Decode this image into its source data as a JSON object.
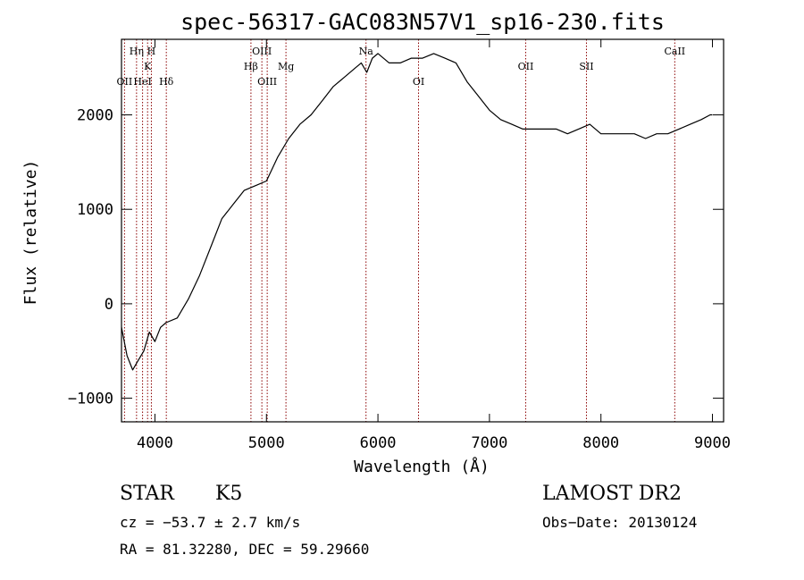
{
  "chart_data": {
    "type": "line",
    "title": "spec-56317-GAC083N57V1_sp16-230.fits",
    "xlabel": "Wavelength (Å)",
    "ylabel": "Flux (relative)",
    "xlim": [
      3700,
      9100
    ],
    "ylim": [
      -1250,
      2800
    ],
    "x_ticks": [
      4000,
      5000,
      6000,
      7000,
      8000,
      9000
    ],
    "y_ticks": [
      -1000,
      0,
      1000,
      2000
    ],
    "grid": false,
    "series": [
      {
        "x": [
          3700,
          3750,
          3800,
          3850,
          3900,
          3950,
          4000,
          4050,
          4100,
          4200,
          4300,
          4400,
          4500,
          4600,
          4700,
          4800,
          4900,
          5000,
          5100,
          5200,
          5300,
          5400,
          5500,
          5600,
          5700,
          5800,
          5850,
          5900,
          5950,
          6000,
          6100,
          6200,
          6300,
          6400,
          6500,
          6600,
          6700,
          6800,
          6900,
          7000,
          7100,
          7200,
          7300,
          7400,
          7500,
          7600,
          7700,
          7800,
          7900,
          8000,
          8100,
          8200,
          8300,
          8400,
          8500,
          8600,
          8700,
          8800,
          8900,
          8980,
          9000
        ],
        "y": [
          -250,
          -550,
          -700,
          -600,
          -500,
          -300,
          -400,
          -250,
          -200,
          -150,
          50,
          300,
          600,
          900,
          1050,
          1200,
          1250,
          1300,
          1550,
          1750,
          1900,
          2000,
          2150,
          2300,
          2400,
          2500,
          2550,
          2450,
          2600,
          2650,
          2550,
          2550,
          2600,
          2600,
          2650,
          2600,
          2550,
          2350,
          2200,
          2050,
          1950,
          1900,
          1850,
          1850,
          1850,
          1850,
          1800,
          1850,
          1900,
          1800,
          1800,
          1800,
          1800,
          1750,
          1800,
          1800,
          1850,
          1900,
          1950,
          2000,
          2000
        ]
      }
    ],
    "line_markers": [
      {
        "label": "Hη",
        "x": 3835,
        "row": 1
      },
      {
        "label": "H",
        "x": 3968,
        "row": 1
      },
      {
        "label": "K",
        "x": 3934,
        "row": 2
      },
      {
        "label": "OII",
        "x": 3727,
        "row": 3
      },
      {
        "label": "HeI",
        "x": 3889,
        "row": 3
      },
      {
        "label": "Hδ",
        "x": 4102,
        "row": 3
      },
      {
        "label": "OIII",
        "x": 4959,
        "row": 1
      },
      {
        "label": "Hβ",
        "x": 4861,
        "row": 2
      },
      {
        "label": "OIII",
        "x": 5007,
        "row": 3
      },
      {
        "label": "Mg",
        "x": 5175,
        "row": 2
      },
      {
        "label": "Na",
        "x": 5893,
        "row": 1
      },
      {
        "label": "OI",
        "x": 6364,
        "row": 3
      },
      {
        "label": "OII",
        "x": 7325,
        "row": 2
      },
      {
        "label": "SII",
        "x": 7870,
        "row": 2
      },
      {
        "label": "CaII",
        "x": 8662,
        "row": 1
      }
    ],
    "marker_color": "#8b0000"
  },
  "info": {
    "object_class": "STAR",
    "subclass": "K5",
    "survey": "LAMOST DR2",
    "redshift": "cz = −53.7 ± 2.7 km/s",
    "obs_date": "Obs−Date: 20130124",
    "coords": "RA =  81.32280, DEC =  59.29660"
  }
}
